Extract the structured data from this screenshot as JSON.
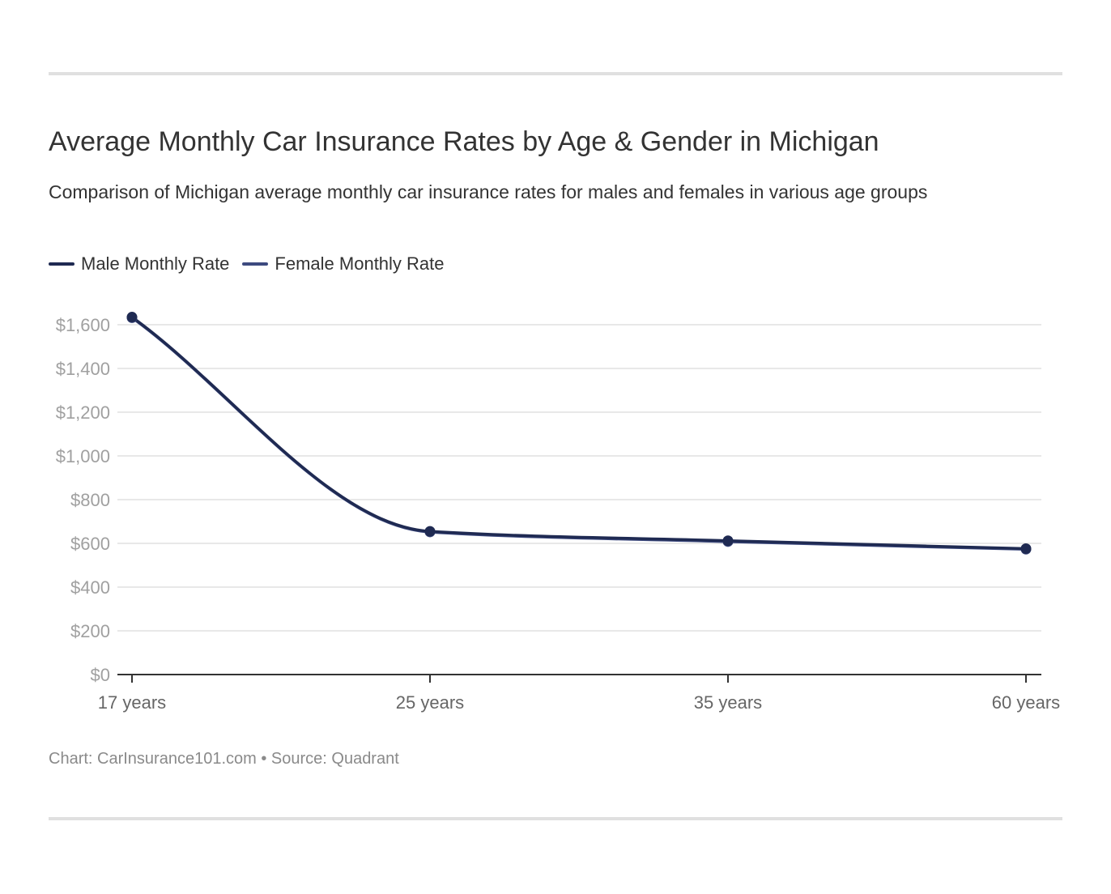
{
  "chart_data": {
    "type": "line",
    "title": "Average Monthly Car Insurance Rates by Age & Gender in Michigan",
    "subtitle": "Comparison of Michigan average monthly car insurance rates for males and females in various age groups",
    "categories": [
      "17 years",
      "25 years",
      "35 years",
      "60 years"
    ],
    "series": [
      {
        "name": "Male Monthly Rate",
        "color": "#1f2a52",
        "values": [
          1635,
          655,
          612,
          576
        ]
      },
      {
        "name": "Female Monthly Rate",
        "color": "#3d4a7f",
        "values": [
          1632,
          652,
          608,
          573
        ]
      }
    ],
    "ylim": [
      0,
      1600
    ],
    "yticks": [
      0,
      200,
      400,
      600,
      800,
      1000,
      1200,
      1400,
      1600
    ],
    "ytick_labels": [
      "$0",
      "$200",
      "$400",
      "$600",
      "$800",
      "$1,000",
      "$1,200",
      "$1,400",
      "$1,600"
    ],
    "xlabel": "",
    "ylabel": "",
    "grid": true,
    "legend_position": "top-left"
  },
  "footer": {
    "credit": "Chart: CarInsurance101.com • Source: Quadrant"
  }
}
